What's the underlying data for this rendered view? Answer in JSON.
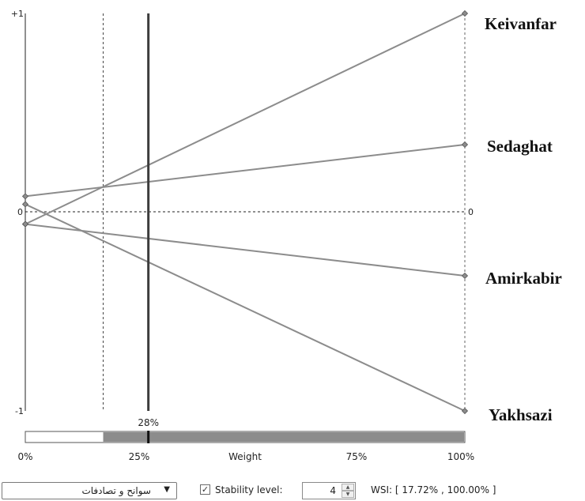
{
  "chart_data": {
    "type": "line",
    "title": "",
    "xlabel": "Weight",
    "ylabel": "",
    "xlim": [
      0,
      100
    ],
    "ylim": [
      -1,
      1
    ],
    "y_ticks_left": [
      "+1",
      "0",
      "-1"
    ],
    "y_tick_right": "0",
    "x_ticks": [
      "0%",
      "25%",
      "Weight",
      "75%",
      "100%"
    ],
    "current_weight": 28,
    "current_weight_label": "28%",
    "stability_interval": [
      17.72,
      100.0
    ],
    "series": [
      {
        "name": "Keivanfar",
        "x": [
          0,
          100
        ],
        "y": [
          -0.06,
          1.0
        ]
      },
      {
        "name": "Sedaghat",
        "x": [
          0,
          100
        ],
        "y": [
          0.08,
          0.34
        ]
      },
      {
        "name": "Amirkabir",
        "x": [
          0,
          100
        ],
        "y": [
          -0.06,
          -0.32
        ]
      },
      {
        "name": "Yakhsazi",
        "x": [
          0,
          100
        ],
        "y": [
          0.04,
          -1.0
        ]
      }
    ]
  },
  "controls": {
    "dropdown_value": "سوانح و تصادفات",
    "dropdown_arrow": "▼",
    "stability_checked": "✓",
    "stability_label": "Stability level:",
    "stability_value": "4",
    "spin_up": "▲",
    "spin_down": "▼",
    "wsi": "WSI: [ 17.72% , 100.00% ]"
  },
  "colors": {
    "line": "#8c8c8c",
    "marker": "#8c8c8c",
    "current_weight": "#3c3c3c",
    "bar_fill": "#8c8c8c"
  }
}
